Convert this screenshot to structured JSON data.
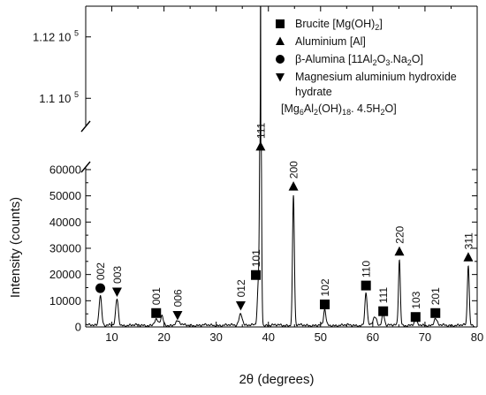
{
  "chart_data": {
    "type": "line",
    "xlabel": "2θ (degrees)",
    "ylabel": "Intensity (counts)",
    "xlim": [
      5,
      80
    ],
    "x_ticks": [
      10,
      20,
      30,
      40,
      50,
      60,
      70,
      80
    ],
    "ylim_lower": [
      0,
      62000
    ],
    "ylim_upper": [
      109000,
      113000
    ],
    "y_ticks_lower": [
      0,
      10000,
      20000,
      30000,
      40000,
      50000,
      60000
    ],
    "y_ticks_upper": [
      {
        "value": 110000,
        "label": "1.1 10",
        "exp": "5"
      },
      {
        "value": 112000,
        "label": "1.12 10",
        "exp": "5"
      }
    ],
    "axis_break": true,
    "grid": false,
    "legend_position": "top-right",
    "legend": [
      {
        "marker": "square",
        "label": "Brucite [Mg(OH)",
        "sub1": "2",
        "tail": "]"
      },
      {
        "marker": "triangle-up",
        "label": "Aluminium [Al]"
      },
      {
        "marker": "circle",
        "label": "β-Alumina [11Al",
        "sub1": "2",
        "mid": "O",
        "sub2": "3",
        "tail": ".Na",
        "sub3": "2",
        "tail2": "O]"
      },
      {
        "marker": "triangle-down",
        "label": "Magnesium aluminium hydroxide",
        "line2": "hydrate",
        "line3": "[Mg",
        "sub1": "6",
        "mid": "Al",
        "sub2": "2",
        "mid2": "(OH)",
        "sub3": "18",
        "tail": ". 4.5H",
        "sub4": "2",
        "tail2": "O]"
      }
    ],
    "peaks": [
      {
        "x": 7.8,
        "y": 11500,
        "width": 0.35
      },
      {
        "x": 11.0,
        "y": 10000,
        "width": 0.35
      },
      {
        "x": 18.5,
        "y": 2000,
        "width": 0.5
      },
      {
        "x": 19.6,
        "y": 3500,
        "width": 0.35
      },
      {
        "x": 22.6,
        "y": 1500,
        "width": 0.6
      },
      {
        "x": 34.7,
        "y": 4500,
        "width": 0.45
      },
      {
        "x": 38.1,
        "y": 16000,
        "width": 0.3
      },
      {
        "x": 38.5,
        "y": 112800,
        "width": 0.22
      },
      {
        "x": 44.8,
        "y": 49500,
        "width": 0.25
      },
      {
        "x": 50.8,
        "y": 6000,
        "width": 0.3
      },
      {
        "x": 58.7,
        "y": 12500,
        "width": 0.3
      },
      {
        "x": 60.4,
        "y": 3000,
        "width": 0.5
      },
      {
        "x": 62.0,
        "y": 4500,
        "width": 0.35
      },
      {
        "x": 65.1,
        "y": 25000,
        "width": 0.25
      },
      {
        "x": 68.2,
        "y": 1500,
        "width": 0.4
      },
      {
        "x": 72.0,
        "y": 2500,
        "width": 0.4
      },
      {
        "x": 78.3,
        "y": 23000,
        "width": 0.25
      }
    ],
    "annotations": [
      {
        "x": 7.8,
        "y": 14800,
        "marker": "circle",
        "label": "002"
      },
      {
        "x": 11.0,
        "y": 13500,
        "marker": "triangle-down",
        "label": "003"
      },
      {
        "x": 18.5,
        "y": 5300,
        "marker": "square",
        "label": "001"
      },
      {
        "x": 22.6,
        "y": 4600,
        "marker": "triangle-down",
        "label": "006"
      },
      {
        "x": 34.7,
        "y": 8300,
        "marker": "triangle-down",
        "label": "012"
      },
      {
        "x": 37.6,
        "y": 19800,
        "marker": "square",
        "label": "101"
      },
      {
        "x": 38.5,
        "y": 63000,
        "marker": "triangle-up",
        "label": "111"
      },
      {
        "x": 44.8,
        "y": 53500,
        "marker": "triangle-up",
        "label": "200"
      },
      {
        "x": 50.8,
        "y": 8600,
        "marker": "square",
        "label": "102"
      },
      {
        "x": 58.7,
        "y": 15800,
        "marker": "square",
        "label": "110"
      },
      {
        "x": 62.0,
        "y": 6000,
        "marker": "square",
        "label": "111"
      },
      {
        "x": 65.1,
        "y": 28700,
        "marker": "triangle-up",
        "label": "220"
      },
      {
        "x": 68.2,
        "y": 3800,
        "marker": "square",
        "label": "103"
      },
      {
        "x": 72.0,
        "y": 5300,
        "marker": "square",
        "label": "201"
      },
      {
        "x": 78.3,
        "y": 26500,
        "marker": "triangle-up",
        "label": "311"
      }
    ],
    "line_color": "#000000"
  }
}
